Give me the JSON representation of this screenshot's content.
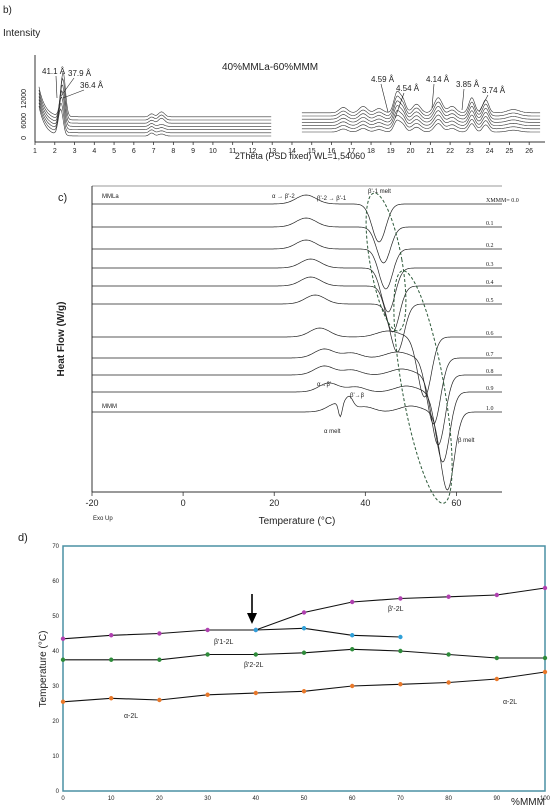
{
  "panel_b": {
    "letter": "b)",
    "ylabel": "Intensity",
    "title": "40%MMLa-60%MMM",
    "xlabel": "2Thêta (PSD fixed) WL=1,54060",
    "yticks": [
      "12000",
      "6000",
      "0"
    ],
    "xticks": [
      "1",
      "2",
      "3",
      "4",
      "5",
      "6",
      "7",
      "8",
      "9",
      "10",
      "11",
      "12",
      "13",
      "14",
      "15",
      "16",
      "17",
      "18",
      "19",
      "20",
      "21",
      "22",
      "23",
      "24",
      "25",
      "26"
    ],
    "peak_labels": [
      "41.1 Å",
      "37.9 Å",
      "36.4 Å",
      "4.59 Å",
      "4.54 Å",
      "4.14 Å",
      "3.85 Å",
      "3.74 Å"
    ]
  },
  "panel_c": {
    "letter": "c)",
    "ylabel": "Heat Flow (W/g)",
    "xlabel": "Temperature (°C)",
    "corner": "Exo Up",
    "xticks": [
      "-20",
      "0",
      "20",
      "40",
      "60"
    ],
    "curve_top_label": "MMLa",
    "curve_bottom_label": "MMM",
    "fractions": [
      "XMMM= 0.0",
      "0.1",
      "0.2",
      "0.3",
      "0.4",
      "0.5",
      "0.6",
      "0.7",
      "0.8",
      "0.9",
      "1.0"
    ],
    "annotations": {
      "a_b2": "α → β'-2",
      "b2_b1": "β'-2 → β'-1",
      "b1_melt": "β'-1 melt",
      "a_bp": "α→β'",
      "bp_b": "β'→β",
      "a_melt": "α melt",
      "b_melt": "β melt"
    }
  },
  "panel_d": {
    "letter": "d)",
    "ylabel": "Temperature (°C)",
    "xlabel": "%MMM",
    "yticks": [
      "0",
      "10",
      "20",
      "30",
      "40",
      "50",
      "60",
      "70"
    ],
    "xticks": [
      "0",
      "10",
      "20",
      "30",
      "40",
      "50",
      "60",
      "70",
      "80",
      "90",
      "100"
    ],
    "region_labels": [
      "β'-2L",
      "β'1-2L",
      "β'2-2L",
      "α-2L",
      "α-2L"
    ],
    "colors": {
      "frame": "#4a90a4",
      "purple": "#b040b0",
      "blue": "#2fa0d8",
      "green": "#2e8b3a",
      "orange": "#e8782a"
    }
  },
  "chart_data": [
    {
      "type": "line",
      "title": "40%MMLa-60%MMM",
      "xlabel": "2Thêta (PSD fixed) WL=1,54060",
      "ylabel": "Intensity",
      "xlim": [
        1,
        26.8
      ],
      "ylim": [
        0,
        18000
      ],
      "peaks": [
        {
          "label": "41.1 Å",
          "x": 2.15
        },
        {
          "label": "37.9 Å",
          "x": 2.35
        },
        {
          "label": "36.4 Å",
          "x": 2.45
        },
        {
          "label": "4.59 Å",
          "x": 19.3
        },
        {
          "label": "4.54 Å",
          "x": 19.6
        },
        {
          "label": "4.14 Å",
          "x": 21.4
        },
        {
          "label": "3.85 Å",
          "x": 23.1
        },
        {
          "label": "3.74 Å",
          "x": 23.8
        }
      ]
    },
    {
      "type": "line",
      "xlabel": "Temperature (°C)",
      "ylabel": "Heat Flow (W/g)",
      "xlim": [
        -20,
        70
      ],
      "series": [
        {
          "name": "0.0",
          "peaks": [
            {
              "T": 27,
              "kind": "exo"
            },
            {
              "T": 43,
              "kind": "endo"
            }
          ]
        },
        {
          "name": "0.1",
          "peaks": [
            {
              "T": 27,
              "kind": "exo"
            },
            {
              "T": 44,
              "kind": "endo"
            }
          ]
        },
        {
          "name": "0.2",
          "peaks": [
            {
              "T": 27,
              "kind": "exo"
            },
            {
              "T": 44.5,
              "kind": "endo"
            }
          ]
        },
        {
          "name": "0.3",
          "peaks": [
            {
              "T": 28,
              "kind": "exo"
            },
            {
              "T": 45,
              "kind": "endo"
            }
          ]
        },
        {
          "name": "0.4",
          "peaks": [
            {
              "T": 28,
              "kind": "exo"
            },
            {
              "T": 46,
              "kind": "endo"
            }
          ]
        },
        {
          "name": "0.5",
          "peaks": [
            {
              "T": 29,
              "kind": "exo"
            },
            {
              "T": 47,
              "kind": "endo"
            }
          ]
        },
        {
          "name": "0.6",
          "peaks": [
            {
              "T": 30,
              "kind": "exo"
            },
            {
              "T": 53,
              "kind": "endo"
            }
          ]
        },
        {
          "name": "0.7",
          "peaks": [
            {
              "T": 31,
              "kind": "exo"
            },
            {
              "T": 55,
              "kind": "endo"
            }
          ]
        },
        {
          "name": "0.8",
          "peaks": [
            {
              "T": 31,
              "kind": "exo"
            },
            {
              "T": 56,
              "kind": "endo"
            }
          ]
        },
        {
          "name": "0.9",
          "peaks": [
            {
              "T": 32,
              "kind": "exo"
            },
            {
              "T": 57,
              "kind": "endo"
            }
          ]
        },
        {
          "name": "1.0",
          "peaks": [
            {
              "T": 34,
              "kind": "exo"
            },
            {
              "T": 58,
              "kind": "endo"
            }
          ]
        }
      ]
    },
    {
      "type": "line",
      "xlabel": "%MMM",
      "ylabel": "Temperature (°C)",
      "xlim": [
        0,
        100
      ],
      "ylim": [
        0,
        70
      ],
      "series": [
        {
          "color": "#b040b0",
          "x": [
            0,
            10,
            20,
            30,
            40,
            50,
            60,
            70,
            80,
            90,
            100
          ],
          "y": [
            43.5,
            44.5,
            45,
            46,
            46,
            51,
            54,
            55,
            55.5,
            56,
            58
          ]
        },
        {
          "color": "#2fa0d8",
          "x": [
            40,
            50,
            60,
            70
          ],
          "y": [
            46,
            46.5,
            44.5,
            44
          ]
        },
        {
          "color": "#2e8b3a",
          "x": [
            0,
            10,
            20,
            30,
            40,
            50,
            60,
            70,
            80,
            90,
            100
          ],
          "y": [
            37.5,
            37.5,
            37.5,
            39,
            39,
            39.5,
            40.5,
            40,
            39,
            38,
            38
          ]
        },
        {
          "color": "#e8782a",
          "x": [
            0,
            10,
            20,
            30,
            40,
            50,
            60,
            70,
            80,
            90,
            100
          ],
          "y": [
            25.5,
            26.5,
            26,
            27.5,
            28,
            28.5,
            30,
            30.5,
            31,
            32,
            34
          ]
        }
      ]
    }
  ]
}
